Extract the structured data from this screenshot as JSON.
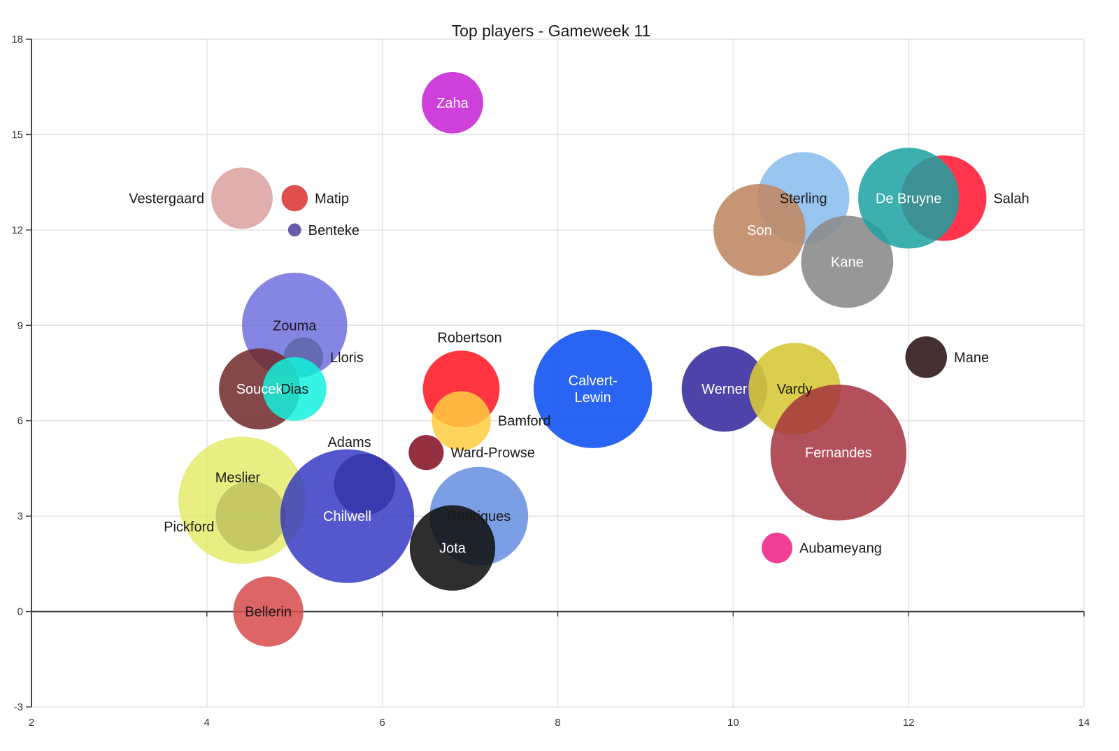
{
  "chart_data": {
    "type": "bubble",
    "title": "Top players - Gameweek 11",
    "xlabel": "",
    "ylabel": "",
    "xlim": [
      2,
      14
    ],
    "ylim": [
      -3,
      18
    ],
    "x_ticks": [
      2,
      4,
      6,
      8,
      10,
      12,
      14
    ],
    "y_ticks": [
      -3,
      0,
      3,
      6,
      9,
      12,
      15,
      18
    ],
    "grid": true,
    "legend": "none",
    "points": [
      {
        "name": "Zaha",
        "x": 6.8,
        "y": 16,
        "size": 2.8,
        "color": "#c51fd4",
        "opacity": 0.85,
        "label_pos": "center",
        "label_color": "#ffffff"
      },
      {
        "name": "Vestergaard",
        "x": 4.4,
        "y": 13,
        "size": 2.8,
        "color": "#d48b8b",
        "opacity": 0.7,
        "label_pos": "left",
        "label_color": "#1a1a1a"
      },
      {
        "name": "Matip",
        "x": 5.0,
        "y": 13,
        "size": 1.2,
        "color": "#dd3a3a",
        "opacity": 0.9,
        "label_pos": "right",
        "label_color": "#1a1a1a"
      },
      {
        "name": "Benteke",
        "x": 5.0,
        "y": 12,
        "size": 0.6,
        "color": "#5a4a9e",
        "opacity": 0.9,
        "label_pos": "right",
        "label_color": "#1a1a1a"
      },
      {
        "name": "Zouma",
        "x": 5.0,
        "y": 9,
        "size": 4.8,
        "color": "#6666dd",
        "opacity": 0.8,
        "label_pos": "center",
        "label_color": "#1a1a1a"
      },
      {
        "name": "Lloris",
        "x": 5.1,
        "y": 8,
        "size": 1.8,
        "color": "#555f9a",
        "opacity": 0.7,
        "label_pos": "right",
        "label_color": "#1a1a1a"
      },
      {
        "name": "Soucek",
        "x": 4.6,
        "y": 7,
        "size": 3.7,
        "color": "#6e2828",
        "opacity": 0.85,
        "label_pos": "center",
        "label_color": "#ffffff"
      },
      {
        "name": "Dias",
        "x": 5.0,
        "y": 7,
        "size": 2.9,
        "color": "#13f2dc",
        "opacity": 0.85,
        "label_pos": "center",
        "label_color": "#1a1a1a"
      },
      {
        "name": "Robertson",
        "x": 6.9,
        "y": 7,
        "size": 3.5,
        "color": "#ff1f2e",
        "opacity": 0.9,
        "label_pos": "top",
        "label_color": "#1a1a1a"
      },
      {
        "name": "Bamford",
        "x": 6.9,
        "y": 6,
        "size": 2.7,
        "color": "#ffcc40",
        "opacity": 0.85,
        "label_pos": "right",
        "label_color": "#1a1a1a"
      },
      {
        "name": "Ward-Prowse",
        "x": 6.5,
        "y": 5,
        "size": 1.6,
        "color": "#8a1a2c",
        "opacity": 0.9,
        "label_pos": "right",
        "label_color": "#1a1a1a"
      },
      {
        "name": "Calvert-Lewin",
        "x": 8.4,
        "y": 7,
        "size": 5.4,
        "color": "#1f5cf2",
        "opacity": 0.95,
        "label_pos": "center",
        "label_color": "#ffffff"
      },
      {
        "name": "Werner",
        "x": 9.9,
        "y": 7,
        "size": 3.9,
        "color": "#3a2fa0",
        "opacity": 0.9,
        "label_pos": "center",
        "label_color": "#ffffff"
      },
      {
        "name": "Vardy",
        "x": 10.7,
        "y": 7,
        "size": 4.2,
        "color": "#d7c83a",
        "opacity": 0.9,
        "label_pos": "center",
        "label_color": "#1a1a1a"
      },
      {
        "name": "Fernandes",
        "x": 11.2,
        "y": 5,
        "size": 6.2,
        "color": "#a5323e",
        "opacity": 0.85,
        "label_pos": "center",
        "label_color": "#ffffff"
      },
      {
        "name": "Mane",
        "x": 12.2,
        "y": 8,
        "size": 1.9,
        "color": "#3a2426",
        "opacity": 0.95,
        "label_pos": "right",
        "label_color": "#1a1a1a"
      },
      {
        "name": "Sterling",
        "x": 10.8,
        "y": 13,
        "size": 4.2,
        "color": "#7fb8ec",
        "opacity": 0.8,
        "label_pos": "center",
        "label_color": "#1a1a1a"
      },
      {
        "name": "Son",
        "x": 10.3,
        "y": 12,
        "size": 4.2,
        "color": "#c08a66",
        "opacity": 0.9,
        "label_pos": "center",
        "label_color": "#ffffff"
      },
      {
        "name": "Kane",
        "x": 11.3,
        "y": 11,
        "size": 4.2,
        "color": "#8c8c8c",
        "opacity": 0.9,
        "label_pos": "center",
        "label_color": "#ffffff"
      },
      {
        "name": "Salah",
        "x": 12.4,
        "y": 13,
        "size": 3.9,
        "color": "#ff1f3a",
        "opacity": 0.9,
        "label_pos": "right",
        "label_color": "#1a1a1a"
      },
      {
        "name": "De Bruyne",
        "x": 12.0,
        "y": 13,
        "size": 4.6,
        "color": "#1ba1a1",
        "opacity": 0.85,
        "label_pos": "center",
        "label_color": "#ffffff"
      },
      {
        "name": "Aubameyang",
        "x": 10.5,
        "y": 2,
        "size": 1.4,
        "color": "#ee2a8a",
        "opacity": 0.9,
        "label_pos": "right",
        "label_color": "#1a1a1a"
      },
      {
        "name": "Meslier",
        "x": 4.4,
        "y": 3.5,
        "size": 5.8,
        "color": "#e2e85a",
        "opacity": 0.75,
        "label_pos": "center-up",
        "label_color": "#1a1a1a"
      },
      {
        "name": "Pickford",
        "x": 4.5,
        "y": 3,
        "size": 3.2,
        "color": "#a8aa4a",
        "opacity": 0.55,
        "label_pos": "left-down",
        "label_color": "#1a1a1a"
      },
      {
        "name": "Adams",
        "x": 5.8,
        "y": 4,
        "size": 2.8,
        "color": "#4a3a3a",
        "opacity": 0.75,
        "label_pos": "top-left",
        "label_color": "#1a1a1a"
      },
      {
        "name": "Chilwell",
        "x": 5.6,
        "y": 3,
        "size": 6.1,
        "color": "#2a2ec0",
        "opacity": 0.8,
        "label_pos": "center",
        "label_color": "#ffffff"
      },
      {
        "name": "Rodrigues",
        "x": 7.1,
        "y": 3,
        "size": 4.5,
        "color": "#5a86dd",
        "opacity": 0.8,
        "label_pos": "center",
        "label_color": "#1a1a1a"
      },
      {
        "name": "Jota",
        "x": 6.8,
        "y": 2,
        "size": 3.9,
        "color": "#111111",
        "opacity": 0.88,
        "label_pos": "center",
        "label_color": "#ffffff"
      },
      {
        "name": "Bellerin",
        "x": 4.7,
        "y": 0,
        "size": 3.2,
        "color": "#d84a4a",
        "opacity": 0.85,
        "label_pos": "center",
        "label_color": "#1a1a1a"
      }
    ]
  }
}
